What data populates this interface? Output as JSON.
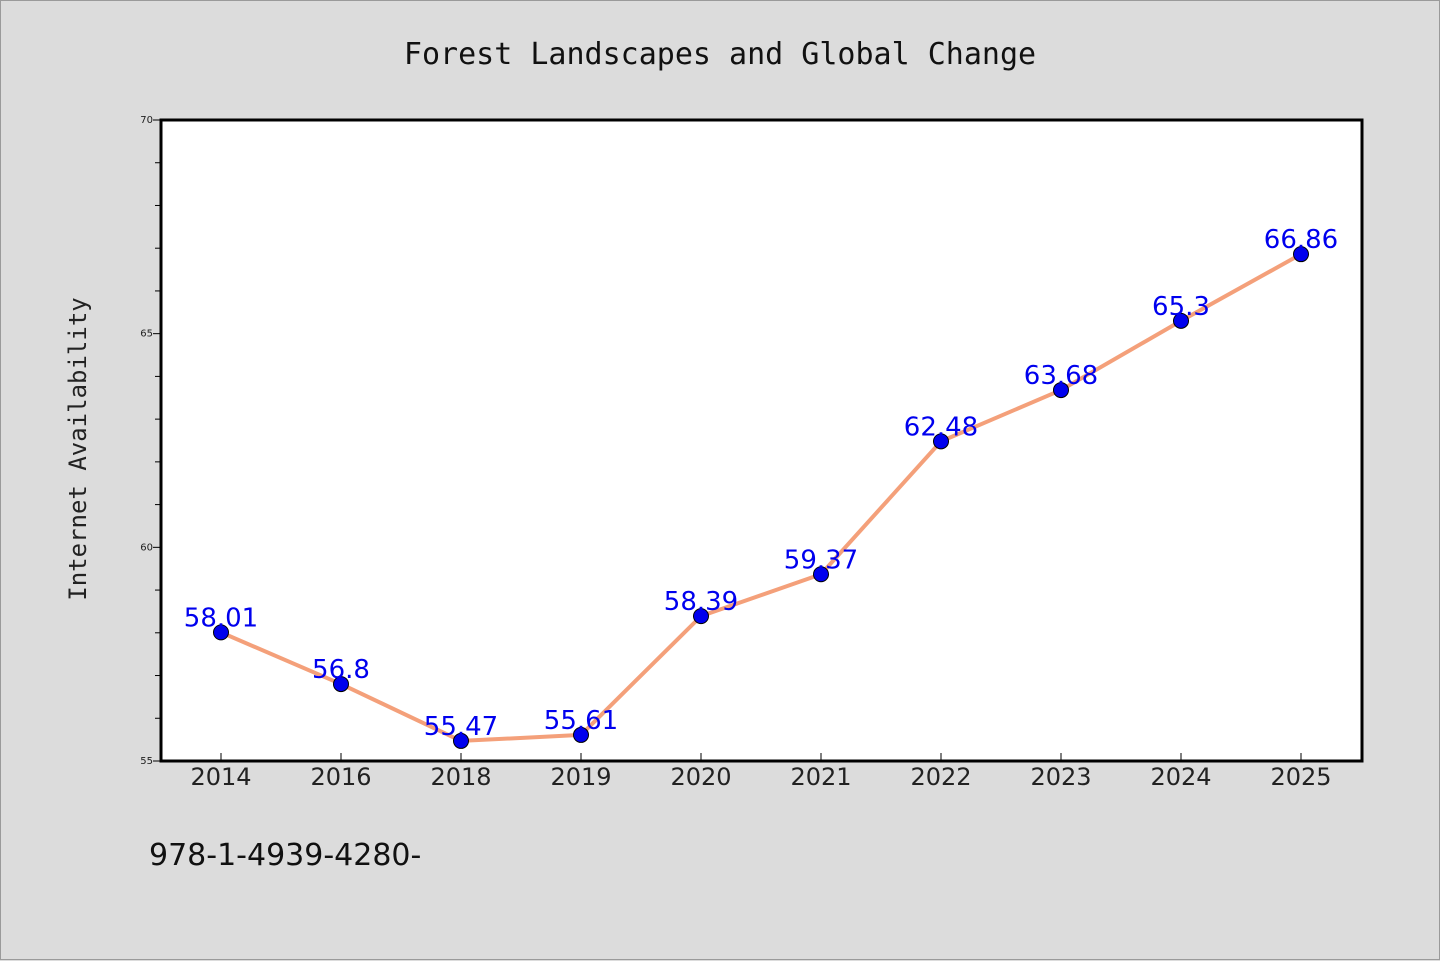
{
  "chart_data": {
    "type": "line",
    "title": "Forest Landscapes and Global Change",
    "xlabel": "",
    "ylabel": "Internet Availability",
    "categories": [
      "2014",
      "2016",
      "2018",
      "2019",
      "2020",
      "2021",
      "2022",
      "2023",
      "2024",
      "2025"
    ],
    "series": [
      {
        "values": [
          58.01,
          56.8,
          55.47,
          55.61,
          58.39,
          59.37,
          62.48,
          63.68,
          65.3,
          66.86
        ],
        "labels": [
          "58.01",
          "56.8",
          "55.47",
          "55.61",
          "58.39",
          "59.37",
          "62.48",
          "63.68",
          "65.3",
          "66.86"
        ]
      }
    ],
    "ylim": [
      55,
      70
    ],
    "yticks": [
      "55",
      "60",
      "65",
      "70"
    ],
    "grid": false,
    "colors": {
      "line": "#f4a07a",
      "marker": "#0000ee",
      "labels": "#0000ee",
      "background": "#dcdcdc",
      "plot_area": "#ffffff"
    }
  },
  "footer_text": "978-1-4939-4280-"
}
